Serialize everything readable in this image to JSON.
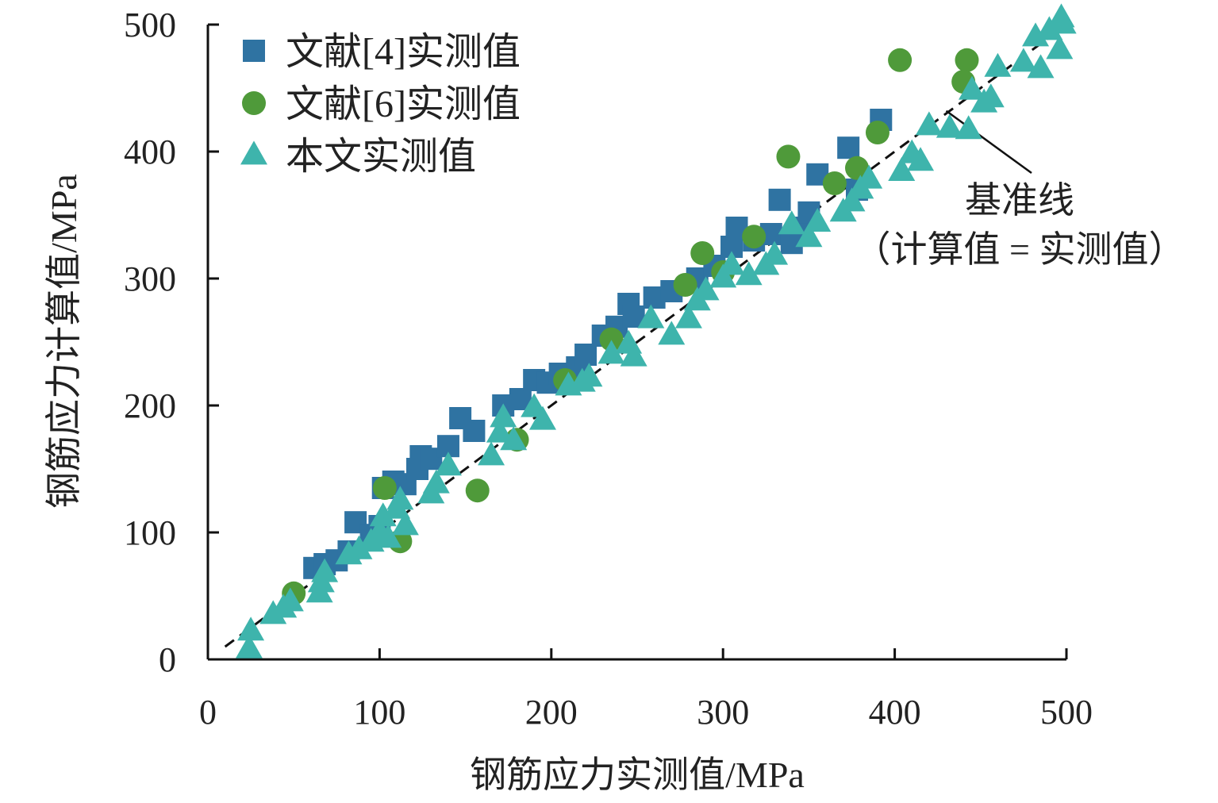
{
  "chart_data": {
    "type": "scatter",
    "title": "",
    "xlabel": "钢筋应力实测值/MPa",
    "ylabel": "钢筋应力计算值/MPa",
    "xlim": [
      0,
      500
    ],
    "ylim": [
      0,
      500
    ],
    "xticks": [
      0,
      100,
      200,
      300,
      400,
      500
    ],
    "yticks": [
      0,
      100,
      200,
      300,
      400,
      500
    ],
    "grid": false,
    "legend_position": "top-left",
    "reference_line": {
      "label": "基准线",
      "sublabel": "（计算值 = 实测值）",
      "from": [
        10,
        10
      ],
      "to": [
        500,
        500
      ],
      "style": "dashed",
      "color": "#111111"
    },
    "series": [
      {
        "name": "文献[4]实测值",
        "marker": "square",
        "color": "#2f73a2",
        "points": [
          [
            62,
            72
          ],
          [
            68,
            75
          ],
          [
            75,
            78
          ],
          [
            82,
            85
          ],
          [
            86,
            108
          ],
          [
            95,
            98
          ],
          [
            100,
            105
          ],
          [
            102,
            135
          ],
          [
            108,
            140
          ],
          [
            115,
            138
          ],
          [
            122,
            150
          ],
          [
            124,
            160
          ],
          [
            130,
            158
          ],
          [
            140,
            168
          ],
          [
            147,
            190
          ],
          [
            155,
            180
          ],
          [
            172,
            200
          ],
          [
            182,
            205
          ],
          [
            190,
            220
          ],
          [
            198,
            218
          ],
          [
            205,
            225
          ],
          [
            215,
            230
          ],
          [
            220,
            240
          ],
          [
            230,
            255
          ],
          [
            238,
            262
          ],
          [
            245,
            280
          ],
          [
            248,
            270
          ],
          [
            260,
            285
          ],
          [
            270,
            290
          ],
          [
            285,
            300
          ],
          [
            295,
            310
          ],
          [
            305,
            325
          ],
          [
            308,
            340
          ],
          [
            318,
            330
          ],
          [
            328,
            335
          ],
          [
            333,
            362
          ],
          [
            340,
            328
          ],
          [
            345,
            340
          ],
          [
            350,
            352
          ],
          [
            355,
            382
          ],
          [
            373,
            403
          ],
          [
            378,
            370
          ],
          [
            392,
            425
          ]
        ]
      },
      {
        "name": "文献[6]实测值",
        "marker": "circle",
        "color": "#4f9a3a",
        "points": [
          [
            50,
            52
          ],
          [
            103,
            135
          ],
          [
            112,
            93
          ],
          [
            157,
            133
          ],
          [
            180,
            173
          ],
          [
            208,
            220
          ],
          [
            235,
            252
          ],
          [
            278,
            295
          ],
          [
            288,
            320
          ],
          [
            300,
            305
          ],
          [
            318,
            333
          ],
          [
            338,
            396
          ],
          [
            365,
            375
          ],
          [
            378,
            387
          ],
          [
            390,
            415
          ],
          [
            403,
            472
          ],
          [
            442,
            472
          ],
          [
            440,
            455
          ]
        ]
      },
      {
        "name": "本文实测值",
        "marker": "triangle",
        "color": "#3eb4ac",
        "points": [
          [
            24,
            8
          ],
          [
            25,
            22
          ],
          [
            38,
            35
          ],
          [
            44,
            40
          ],
          [
            48,
            45
          ],
          [
            65,
            52
          ],
          [
            66,
            60
          ],
          [
            68,
            68
          ],
          [
            82,
            82
          ],
          [
            88,
            86
          ],
          [
            95,
            92
          ],
          [
            100,
            100
          ],
          [
            102,
            112
          ],
          [
            105,
            95
          ],
          [
            110,
            118
          ],
          [
            112,
            125
          ],
          [
            115,
            105
          ],
          [
            130,
            130
          ],
          [
            133,
            138
          ],
          [
            140,
            152
          ],
          [
            165,
            160
          ],
          [
            170,
            178
          ],
          [
            172,
            190
          ],
          [
            178,
            172
          ],
          [
            190,
            198
          ],
          [
            195,
            188
          ],
          [
            210,
            215
          ],
          [
            218,
            218
          ],
          [
            222,
            222
          ],
          [
            235,
            240
          ],
          [
            245,
            248
          ],
          [
            248,
            238
          ],
          [
            258,
            268
          ],
          [
            270,
            255
          ],
          [
            280,
            268
          ],
          [
            285,
            282
          ],
          [
            290,
            290
          ],
          [
            300,
            300
          ],
          [
            305,
            310
          ],
          [
            315,
            302
          ],
          [
            325,
            310
          ],
          [
            330,
            318
          ],
          [
            340,
            342
          ],
          [
            350,
            332
          ],
          [
            355,
            344
          ],
          [
            370,
            352
          ],
          [
            375,
            360
          ],
          [
            380,
            370
          ],
          [
            385,
            378
          ],
          [
            404,
            384
          ],
          [
            410,
            398
          ],
          [
            415,
            392
          ],
          [
            420,
            420
          ],
          [
            432,
            418
          ],
          [
            443,
            417
          ],
          [
            445,
            448
          ],
          [
            452,
            438
          ],
          [
            456,
            442
          ],
          [
            460,
            466
          ],
          [
            475,
            470
          ],
          [
            482,
            490
          ],
          [
            485,
            465
          ],
          [
            490,
            495
          ],
          [
            496,
            480
          ],
          [
            497,
            505
          ],
          [
            498,
            500
          ]
        ]
      }
    ]
  }
}
